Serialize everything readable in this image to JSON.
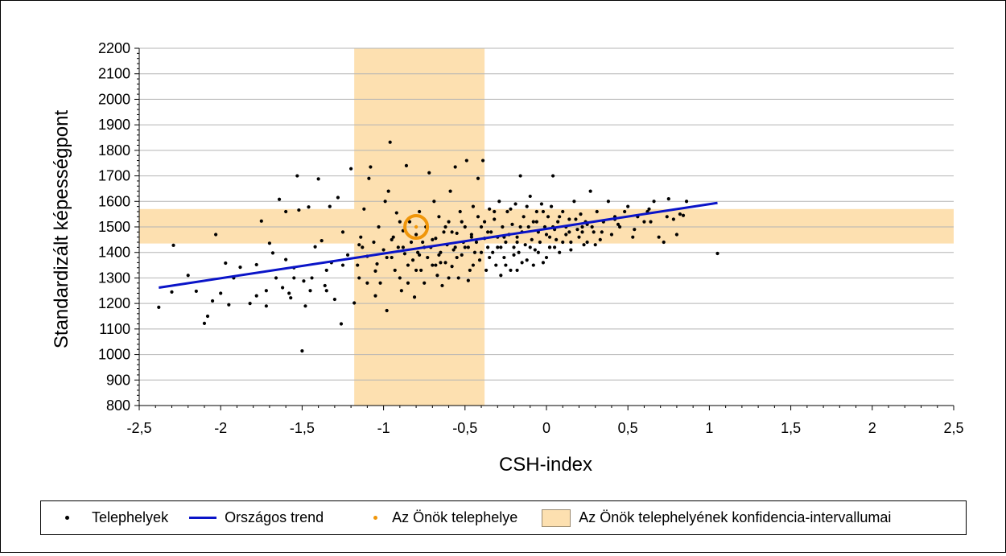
{
  "chart_data": {
    "type": "scatter",
    "title": "",
    "xlabel": "CSH-index",
    "ylabel": "Standardizált képességpont",
    "xlim": [
      -2.5,
      2.5
    ],
    "ylim": [
      800,
      2200
    ],
    "x_ticks": [
      "-2,5",
      "-2",
      "-1,5",
      "-1",
      "-0,5",
      "0",
      "0,5",
      "1",
      "1,5",
      "2",
      "2,5"
    ],
    "y_ticks": [
      "800",
      "900",
      "1000",
      "1100",
      "1200",
      "1300",
      "1400",
      "1500",
      "1600",
      "1700",
      "1800",
      "1900",
      "2000",
      "2100",
      "2200"
    ],
    "grid": "horizontal",
    "legend_position": "bottom",
    "legend": [
      {
        "label": "Telephelyek",
        "symbol": "dot",
        "color": "#000000"
      },
      {
        "label": "Országos trend",
        "symbol": "line",
        "color": "#0a14c8"
      },
      {
        "label": "Az Önök telephelye",
        "symbol": "dot",
        "color": "#f0960a"
      },
      {
        "label": "Az Önök telephelyének konfidencia-intervallumai",
        "symbol": "box",
        "color": "#fde0b0"
      }
    ],
    "confidence_interval": {
      "x_range": [
        -1.18,
        -0.38
      ],
      "y_range": [
        1435,
        1570
      ],
      "color": "#fde0b0"
    },
    "trend": {
      "name": "Országos trend",
      "color": "#0a14c8",
      "x": [
        -2.38,
        1.05
      ],
      "y": [
        1262,
        1594
      ]
    },
    "site": {
      "name": "Az Önök telephelye",
      "x": -0.8,
      "y": 1500,
      "color": "#f0960a"
    },
    "scatter": {
      "name": "Telephelyek",
      "color": "#000000",
      "points": [
        [
          -2.38,
          1185
        ],
        [
          -2.3,
          1245
        ],
        [
          -2.29,
          1428
        ],
        [
          -2.2,
          1310
        ],
        [
          -2.15,
          1248
        ],
        [
          -2.1,
          1122
        ],
        [
          -2.08,
          1150
        ],
        [
          -2.05,
          1210
        ],
        [
          -2.03,
          1470
        ],
        [
          -2.0,
          1240
        ],
        [
          -1.97,
          1358
        ],
        [
          -1.95,
          1195
        ],
        [
          -1.92,
          1300
        ],
        [
          -1.88,
          1342
        ],
        [
          -1.82,
          1200
        ],
        [
          -1.78,
          1352
        ],
        [
          -1.75,
          1523
        ],
        [
          -1.72,
          1190
        ],
        [
          -1.7,
          1436
        ],
        [
          -1.68,
          1398
        ],
        [
          -1.66,
          1300
        ],
        [
          -1.64,
          1608
        ],
        [
          -1.62,
          1262
        ],
        [
          -1.6,
          1372
        ],
        [
          -1.58,
          1240
        ],
        [
          -1.57,
          1222
        ],
        [
          -1.55,
          1340
        ],
        [
          -1.53,
          1700
        ],
        [
          -1.52,
          1566
        ],
        [
          -1.5,
          1014
        ],
        [
          -1.49,
          1288
        ],
        [
          -1.48,
          1190
        ],
        [
          -1.46,
          1578
        ],
        [
          -1.44,
          1300
        ],
        [
          -1.42,
          1422
        ],
        [
          -1.4,
          1688
        ],
        [
          -1.38,
          1446
        ],
        [
          -1.36,
          1270
        ],
        [
          -1.35,
          1250
        ],
        [
          -1.33,
          1580
        ],
        [
          -1.32,
          1360
        ],
        [
          -1.3,
          1216
        ],
        [
          -1.28,
          1615
        ],
        [
          -1.26,
          1120
        ],
        [
          -1.25,
          1480
        ],
        [
          -1.22,
          1390
        ],
        [
          -1.2,
          1728
        ],
        [
          -1.18,
          1202
        ],
        [
          -1.16,
          1350
        ],
        [
          -1.15,
          1300
        ],
        [
          -1.14,
          1460
        ],
        [
          -1.13,
          1420
        ],
        [
          -1.12,
          1570
        ],
        [
          -1.1,
          1385
        ],
        [
          -1.09,
          1690
        ],
        [
          -1.08,
          1735
        ],
        [
          -1.06,
          1440
        ],
        [
          -1.05,
          1327
        ],
        [
          -1.04,
          1355
        ],
        [
          -1.03,
          1500
        ],
        [
          -1.02,
          1280
        ],
        [
          -1.0,
          1410
        ],
        [
          -0.99,
          1600
        ],
        [
          -0.98,
          1172
        ],
        [
          -0.97,
          1640
        ],
        [
          -0.96,
          1832
        ],
        [
          -0.95,
          1380
        ],
        [
          -0.94,
          1460
        ],
        [
          -0.93,
          1330
        ],
        [
          -0.92,
          1555
        ],
        [
          -0.91,
          1420
        ],
        [
          -0.9,
          1300
        ],
        [
          -0.89,
          1250
        ],
        [
          -0.88,
          1485
        ],
        [
          -0.87,
          1395
        ],
        [
          -0.86,
          1740
        ],
        [
          -0.85,
          1350
        ],
        [
          -0.84,
          1520
        ],
        [
          -0.83,
          1440
        ],
        [
          -0.82,
          1370
        ],
        [
          -0.81,
          1225
        ],
        [
          -0.8,
          1470
        ],
        [
          -0.79,
          1400
        ],
        [
          -0.78,
          1560
        ],
        [
          -0.77,
          1330
        ],
        [
          -0.76,
          1440
        ],
        [
          -0.75,
          1280
        ],
        [
          -0.74,
          1500
        ],
        [
          -0.73,
          1380
        ],
        [
          -0.72,
          1712
        ],
        [
          -0.71,
          1420
        ],
        [
          -0.7,
          1350
        ],
        [
          -0.69,
          1600
        ],
        [
          -0.68,
          1455
        ],
        [
          -0.67,
          1310
        ],
        [
          -0.66,
          1540
        ],
        [
          -0.65,
          1400
        ],
        [
          -0.64,
          1270
        ],
        [
          -0.63,
          1480
        ],
        [
          -0.62,
          1360
        ],
        [
          -0.61,
          1430
        ],
        [
          -0.6,
          1520
        ],
        [
          -0.59,
          1640
        ],
        [
          -0.58,
          1345
        ],
        [
          -0.57,
          1410
        ],
        [
          -0.56,
          1735
        ],
        [
          -0.55,
          1475
        ],
        [
          -0.54,
          1300
        ],
        [
          -0.53,
          1560
        ],
        [
          -0.52,
          1390
        ],
        [
          -0.51,
          1440
        ],
        [
          -0.5,
          1500
        ],
        [
          -0.49,
          1760
        ],
        [
          -0.48,
          1420
        ],
        [
          -0.47,
          1330
        ],
        [
          -0.46,
          1470
        ],
        [
          -0.45,
          1580
        ],
        [
          -0.44,
          1400
        ],
        [
          -0.43,
          1440
        ],
        [
          -0.42,
          1690
        ],
        [
          -0.41,
          1370
        ],
        [
          -0.4,
          1500
        ],
        [
          -0.39,
          1760
        ],
        [
          -0.38,
          1455
        ],
        [
          -0.37,
          1330
        ],
        [
          -0.36,
          1420
        ],
        [
          -0.35,
          1570
        ],
        [
          -0.34,
          1480
        ],
        [
          -0.33,
          1400
        ],
        [
          -0.32,
          1530
        ],
        [
          -0.31,
          1350
        ],
        [
          -0.3,
          1460
        ],
        [
          -0.29,
          1600
        ],
        [
          -0.28,
          1420
        ],
        [
          -0.27,
          1500
        ],
        [
          -0.26,
          1380
        ],
        [
          -0.25,
          1440
        ],
        [
          -0.24,
          1560
        ],
        [
          -0.23,
          1470
        ],
        [
          -0.22,
          1330
        ],
        [
          -0.21,
          1510
        ],
        [
          -0.2,
          1420
        ],
        [
          -0.19,
          1590
        ],
        [
          -0.18,
          1460
        ],
        [
          -0.17,
          1400
        ],
        [
          -0.16,
          1700
        ],
        [
          -0.15,
          1480
        ],
        [
          -0.14,
          1540
        ],
        [
          -0.13,
          1430
        ],
        [
          -0.12,
          1370
        ],
        [
          -0.11,
          1500
        ],
        [
          -0.1,
          1620
        ],
        [
          -0.09,
          1450
        ],
        [
          -0.08,
          1520
        ],
        [
          -0.07,
          1410
        ],
        [
          -0.06,
          1560
        ],
        [
          -0.05,
          1480
        ],
        [
          -0.04,
          1440
        ],
        [
          -0.03,
          1590
        ],
        [
          -0.02,
          1360
        ],
        [
          -0.01,
          1500
        ],
        [
          0.0,
          1470
        ],
        [
          0.01,
          1540
        ],
        [
          0.02,
          1420
        ],
        [
          0.03,
          1580
        ],
        [
          0.04,
          1700
        ],
        [
          0.05,
          1490
        ],
        [
          0.06,
          1450
        ],
        [
          0.07,
          1520
        ],
        [
          0.08,
          1400
        ],
        [
          0.1,
          1560
        ],
        [
          0.12,
          1470
        ],
        [
          0.14,
          1530
        ],
        [
          0.15,
          1440
        ],
        [
          0.17,
          1600
        ],
        [
          0.19,
          1490
        ],
        [
          0.21,
          1550
        ],
        [
          0.23,
          1430
        ],
        [
          0.25,
          1510
        ],
        [
          0.27,
          1640
        ],
        [
          0.29,
          1480
        ],
        [
          0.31,
          1560
        ],
        [
          0.33,
          1450
        ],
        [
          0.35,
          1520
        ],
        [
          0.38,
          1600
        ],
        [
          0.4,
          1470
        ],
        [
          0.42,
          1540
        ],
        [
          0.45,
          1500
        ],
        [
          0.48,
          1560
        ],
        [
          0.5,
          1580
        ],
        [
          0.53,
          1460
        ],
        [
          0.56,
          1540
        ],
        [
          0.6,
          1520
        ],
        [
          0.63,
          1570
        ],
        [
          0.66,
          1600
        ],
        [
          0.69,
          1460
        ],
        [
          0.72,
          1440
        ],
        [
          0.75,
          1610
        ],
        [
          0.78,
          1530
        ],
        [
          0.8,
          1470
        ],
        [
          0.84,
          1545
        ],
        [
          0.86,
          1600
        ],
        [
          1.05,
          1396
        ],
        [
          -1.1,
          1280
        ],
        [
          -1.05,
          1230
        ],
        [
          -0.95,
          1450
        ],
        [
          -0.9,
          1520
        ],
        [
          -0.85,
          1280
        ],
        [
          -0.8,
          1330
        ],
        [
          -0.75,
          1420
        ],
        [
          -0.7,
          1450
        ],
        [
          -0.65,
          1360
        ],
        [
          -0.6,
          1300
        ],
        [
          -0.55,
          1380
        ],
        [
          -0.5,
          1420
        ],
        [
          -0.45,
          1350
        ],
        [
          -0.4,
          1400
        ],
        [
          -0.35,
          1380
        ],
        [
          -0.3,
          1420
        ],
        [
          -0.25,
          1350
        ],
        [
          -0.2,
          1390
        ],
        [
          -0.15,
          1360
        ],
        [
          -0.1,
          1420
        ],
        [
          -0.05,
          1400
        ],
        [
          0.0,
          1380
        ],
        [
          0.05,
          1420
        ],
        [
          0.1,
          1440
        ],
        [
          0.15,
          1410
        ],
        [
          0.2,
          1460
        ],
        [
          0.25,
          1440
        ],
        [
          0.3,
          1430
        ],
        [
          -0.48,
          1290
        ],
        [
          -0.28,
          1310
        ],
        [
          -0.18,
          1330
        ],
        [
          -0.08,
          1350
        ],
        [
          0.02,
          1420
        ],
        [
          0.12,
          1500
        ],
        [
          0.22,
          1480
        ],
        [
          -0.62,
          1500
        ],
        [
          -0.52,
          1520
        ],
        [
          -0.42,
          1540
        ],
        [
          -0.32,
          1560
        ],
        [
          -0.22,
          1570
        ],
        [
          -0.12,
          1580
        ],
        [
          -0.02,
          1560
        ],
        [
          0.08,
          1540
        ],
        [
          0.18,
          1530
        ],
        [
          0.28,
          1500
        ],
        [
          -0.66,
          1390
        ],
        [
          -0.56,
          1420
        ],
        [
          -0.46,
          1460
        ],
        [
          -0.36,
          1480
        ],
        [
          -0.26,
          1460
        ],
        [
          -0.16,
          1500
        ],
        [
          -0.06,
          1520
        ],
        [
          0.04,
          1500
        ],
        [
          0.14,
          1480
        ],
        [
          0.24,
          1520
        ],
        [
          0.34,
          1480
        ],
        [
          0.44,
          1510
        ],
        [
          0.54,
          1490
        ],
        [
          0.64,
          1520
        ],
        [
          0.74,
          1540
        ],
        [
          -1.6,
          1560
        ],
        [
          -1.55,
          1300
        ],
        [
          -1.45,
          1250
        ],
        [
          -1.35,
          1330
        ],
        [
          -1.25,
          1350
        ],
        [
          -1.15,
          1430
        ],
        [
          -0.98,
          1380
        ],
        [
          -0.88,
          1420
        ],
        [
          -0.78,
          1390
        ],
        [
          -0.68,
          1350
        ],
        [
          -0.58,
          1480
        ],
        [
          -0.38,
          1520
        ],
        [
          -0.18,
          1440
        ],
        [
          0.02,
          1460
        ],
        [
          0.22,
          1500
        ],
        [
          0.42,
          1530
        ],
        [
          0.62,
          1560
        ],
        [
          0.82,
          1550
        ],
        [
          -1.78,
          1230
        ],
        [
          -1.72,
          1250
        ]
      ]
    }
  }
}
